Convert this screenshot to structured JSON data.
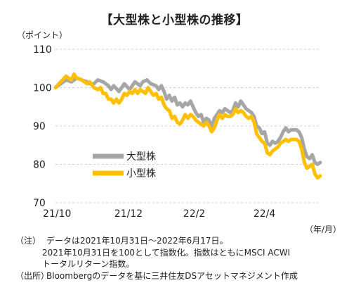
{
  "title": "【大型株と小型株の推移】",
  "y_unit": "（ポイント）",
  "x_unit": "（年/月）",
  "notes": {
    "label1": "（注）",
    "line1": "データは2021年10月31日～2022年6月17日。",
    "line2": "2021年10月31日を100として指数化。指数はともにMSCI  ACWI",
    "line3": "トータルリターン指数。",
    "label2": "（出所）",
    "line4": "Bloombergのデータを基に三井住友DSアセットマネジメント作成"
  },
  "chart_data": {
    "type": "line",
    "x_ticks": [
      "21/10",
      "21/12",
      "22/2",
      "22/4"
    ],
    "y_ticks": [
      70,
      80,
      90,
      100,
      110
    ],
    "ylim": [
      70,
      110
    ],
    "xlim": [
      0,
      1
    ],
    "grid": true,
    "legend_position": "lower-left",
    "series": [
      {
        "name": "大型株",
        "color": "#a6a6a6",
        "points": [
          [
            0,
            100
          ],
          [
            0.02,
            101
          ],
          [
            0.04,
            102
          ],
          [
            0.06,
            101.5
          ],
          [
            0.08,
            102.5
          ],
          [
            0.1,
            102
          ],
          [
            0.12,
            101.5
          ],
          [
            0.13,
            101
          ],
          [
            0.145,
            101
          ],
          [
            0.16,
            102
          ],
          [
            0.18,
            101.5
          ],
          [
            0.2,
            100.5
          ],
          [
            0.21,
            99.5
          ],
          [
            0.22,
            100.5
          ],
          [
            0.24,
            99
          ],
          [
            0.26,
            101
          ],
          [
            0.28,
            99.5
          ],
          [
            0.3,
            101.5
          ],
          [
            0.32,
            100.5
          ],
          [
            0.33,
            101.5
          ],
          [
            0.345,
            102
          ],
          [
            0.36,
            101
          ],
          [
            0.38,
            100.5
          ],
          [
            0.39,
            99.5
          ],
          [
            0.4,
            100.5
          ],
          [
            0.41,
            99
          ],
          [
            0.42,
            97
          ],
          [
            0.43,
            98
          ],
          [
            0.44,
            96.5
          ],
          [
            0.45,
            97.5
          ],
          [
            0.46,
            95.5
          ],
          [
            0.47,
            96
          ],
          [
            0.48,
            95
          ],
          [
            0.49,
            96
          ],
          [
            0.5,
            95.5
          ],
          [
            0.51,
            96.5
          ],
          [
            0.52,
            95
          ],
          [
            0.53,
            93.5
          ],
          [
            0.54,
            92.5
          ],
          [
            0.55,
            93
          ],
          [
            0.56,
            91
          ],
          [
            0.57,
            92
          ],
          [
            0.58,
            91.5
          ],
          [
            0.59,
            89.5
          ],
          [
            0.6,
            92
          ],
          [
            0.61,
            93
          ],
          [
            0.62,
            94
          ],
          [
            0.63,
            93.5
          ],
          [
            0.64,
            94.5
          ],
          [
            0.65,
            94
          ],
          [
            0.66,
            93.5
          ],
          [
            0.67,
            94
          ],
          [
            0.68,
            96
          ],
          [
            0.69,
            95
          ],
          [
            0.7,
            96.5
          ],
          [
            0.71,
            95.5
          ],
          [
            0.72,
            94.5
          ],
          [
            0.73,
            94
          ],
          [
            0.74,
            93.5
          ],
          [
            0.75,
            92.5
          ],
          [
            0.76,
            90
          ],
          [
            0.77,
            89.5
          ],
          [
            0.78,
            88
          ],
          [
            0.79,
            88.5
          ],
          [
            0.8,
            85.5
          ],
          [
            0.81,
            85
          ],
          [
            0.82,
            86
          ],
          [
            0.83,
            85.5
          ],
          [
            0.84,
            86
          ],
          [
            0.85,
            87
          ],
          [
            0.86,
            88.5
          ],
          [
            0.865,
            89
          ],
          [
            0.87,
            89.5
          ],
          [
            0.88,
            88.5
          ],
          [
            0.89,
            89
          ],
          [
            0.9,
            89
          ],
          [
            0.91,
            89
          ],
          [
            0.92,
            88.5
          ],
          [
            0.93,
            87
          ],
          [
            0.94,
            84
          ],
          [
            0.95,
            82
          ],
          [
            0.96,
            81.5
          ],
          [
            0.97,
            82.5
          ],
          [
            0.98,
            80.5
          ],
          [
            0.99,
            80
          ],
          [
            1.0,
            80.5
          ]
        ]
      },
      {
        "name": "小型株",
        "color": "#ffc000",
        "points": [
          [
            0,
            100
          ],
          [
            0.02,
            101.5
          ],
          [
            0.04,
            103
          ],
          [
            0.06,
            102
          ],
          [
            0.07,
            103.5
          ],
          [
            0.08,
            102.5
          ],
          [
            0.1,
            102
          ],
          [
            0.12,
            101
          ],
          [
            0.13,
            101.5
          ],
          [
            0.145,
            100
          ],
          [
            0.16,
            99.5
          ],
          [
            0.17,
            100
          ],
          [
            0.18,
            98.5
          ],
          [
            0.19,
            98.5
          ],
          [
            0.2,
            97
          ],
          [
            0.21,
            97
          ],
          [
            0.22,
            96
          ],
          [
            0.23,
            97
          ],
          [
            0.24,
            96
          ],
          [
            0.25,
            97
          ],
          [
            0.26,
            98.5
          ],
          [
            0.27,
            98
          ],
          [
            0.28,
            99
          ],
          [
            0.29,
            98.5
          ],
          [
            0.3,
            99.5
          ],
          [
            0.31,
            98.5
          ],
          [
            0.32,
            99.5
          ],
          [
            0.33,
            99
          ],
          [
            0.34,
            98.5
          ],
          [
            0.35,
            100
          ],
          [
            0.36,
            99
          ],
          [
            0.37,
            98
          ],
          [
            0.38,
            98.5
          ],
          [
            0.39,
            97
          ],
          [
            0.4,
            97.5
          ],
          [
            0.41,
            95.5
          ],
          [
            0.42,
            94.5
          ],
          [
            0.43,
            94
          ],
          [
            0.44,
            92
          ],
          [
            0.45,
            92.5
          ],
          [
            0.46,
            91
          ],
          [
            0.47,
            90.5
          ],
          [
            0.48,
            91.5
          ],
          [
            0.49,
            93
          ],
          [
            0.5,
            92
          ],
          [
            0.51,
            93
          ],
          [
            0.52,
            92.5
          ],
          [
            0.53,
            91.5
          ],
          [
            0.54,
            91
          ],
          [
            0.55,
            90.5
          ],
          [
            0.56,
            90
          ],
          [
            0.57,
            91
          ],
          [
            0.58,
            90
          ],
          [
            0.59,
            88.5
          ],
          [
            0.6,
            89.5
          ],
          [
            0.61,
            91.5
          ],
          [
            0.62,
            93
          ],
          [
            0.63,
            92
          ],
          [
            0.64,
            93
          ],
          [
            0.65,
            92.5
          ],
          [
            0.66,
            92.5
          ],
          [
            0.67,
            93
          ],
          [
            0.68,
            94.5
          ],
          [
            0.69,
            93.5
          ],
          [
            0.7,
            94
          ],
          [
            0.71,
            93.5
          ],
          [
            0.72,
            92.5
          ],
          [
            0.73,
            92
          ],
          [
            0.74,
            92.5
          ],
          [
            0.75,
            91
          ],
          [
            0.76,
            88
          ],
          [
            0.77,
            87
          ],
          [
            0.78,
            86
          ],
          [
            0.79,
            85.5
          ],
          [
            0.8,
            83
          ],
          [
            0.81,
            82.5
          ],
          [
            0.82,
            83.5
          ],
          [
            0.83,
            84
          ],
          [
            0.84,
            84.5
          ],
          [
            0.85,
            85.5
          ],
          [
            0.86,
            86
          ],
          [
            0.87,
            86.5
          ],
          [
            0.88,
            86
          ],
          [
            0.89,
            86.5
          ],
          [
            0.9,
            86.5
          ],
          [
            0.91,
            86.5
          ],
          [
            0.92,
            86
          ],
          [
            0.93,
            84
          ],
          [
            0.94,
            80.5
          ],
          [
            0.95,
            79
          ],
          [
            0.96,
            79.5
          ],
          [
            0.97,
            80
          ],
          [
            0.98,
            77.5
          ],
          [
            0.99,
            76.5
          ],
          [
            1.0,
            77
          ]
        ]
      }
    ]
  }
}
